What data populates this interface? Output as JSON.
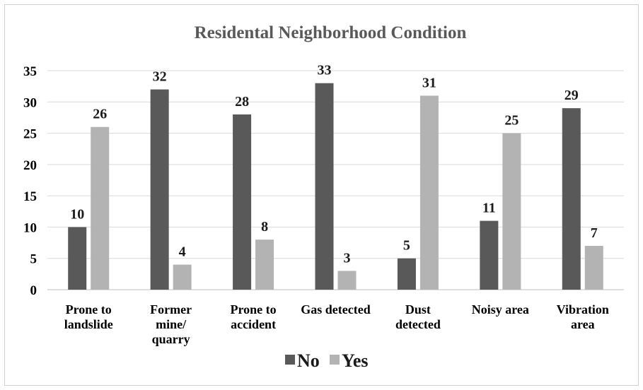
{
  "chart_data": {
    "type": "bar",
    "title": "Residental Neighborhood Condition",
    "categories": [
      [
        "Prone to",
        "landslide"
      ],
      [
        "Former",
        "mine/",
        "quarry"
      ],
      [
        "Prone to",
        "accident"
      ],
      [
        "Gas detected"
      ],
      [
        "Dust",
        "detected"
      ],
      [
        "Noisy area"
      ],
      [
        "Vibration",
        "area"
      ]
    ],
    "series": [
      {
        "name": "No",
        "color": "#595959",
        "values": [
          10,
          32,
          28,
          33,
          5,
          11,
          29
        ]
      },
      {
        "name": "Yes",
        "color": "#b3b3b3",
        "values": [
          26,
          4,
          8,
          3,
          31,
          25,
          7
        ]
      }
    ],
    "yticks": [
      0,
      5,
      10,
      15,
      20,
      25,
      30,
      35
    ],
    "ylim": [
      0,
      35
    ],
    "grid": true,
    "legend_position": "bottom",
    "data_labels": true
  }
}
